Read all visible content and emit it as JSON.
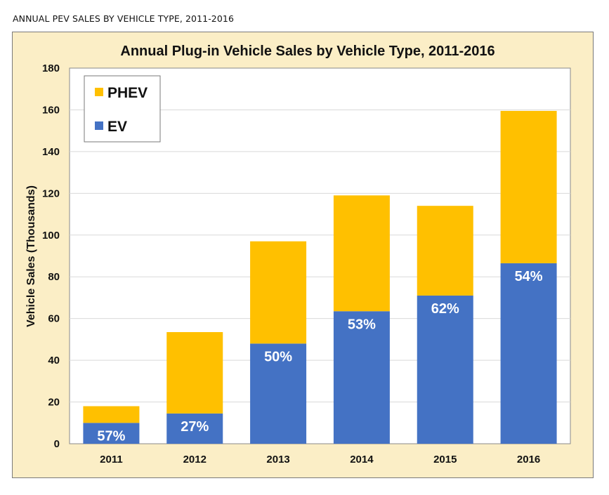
{
  "page": {
    "heading": "ANNUAL PEV SALES BY VEHICLE TYPE, 2011-2016"
  },
  "colors": {
    "frame_background": "#fbeec6",
    "plot_background": "#ffffff",
    "ev": "#4472c4",
    "phev": "#ffc000"
  },
  "chart_data": {
    "type": "bar",
    "stacked": true,
    "title": "Annual Plug-in Vehicle Sales by Vehicle Type, 2011-2016",
    "xlabel": "",
    "ylabel": "Vehicle Sales (Thousands)",
    "ylim": [
      0,
      180
    ],
    "yticks": [
      0,
      20,
      40,
      60,
      80,
      100,
      120,
      140,
      160,
      180
    ],
    "grid": true,
    "legend_position": "top-left",
    "categories": [
      "2011",
      "2012",
      "2013",
      "2014",
      "2015",
      "2016"
    ],
    "series": [
      {
        "name": "EV",
        "color": "#4472c4",
        "values": [
          10,
          14.5,
          48,
          63.5,
          71,
          86.5
        ]
      },
      {
        "name": "PHEV",
        "color": "#ffc000",
        "values": [
          8,
          39,
          49,
          55.5,
          43,
          73
        ]
      }
    ],
    "bar_labels": [
      "57%",
      "27%",
      "50%",
      "53%",
      "62%",
      "54%"
    ],
    "legend": [
      {
        "name": "PHEV",
        "color": "#ffc000"
      },
      {
        "name": "EV",
        "color": "#4472c4"
      }
    ]
  }
}
